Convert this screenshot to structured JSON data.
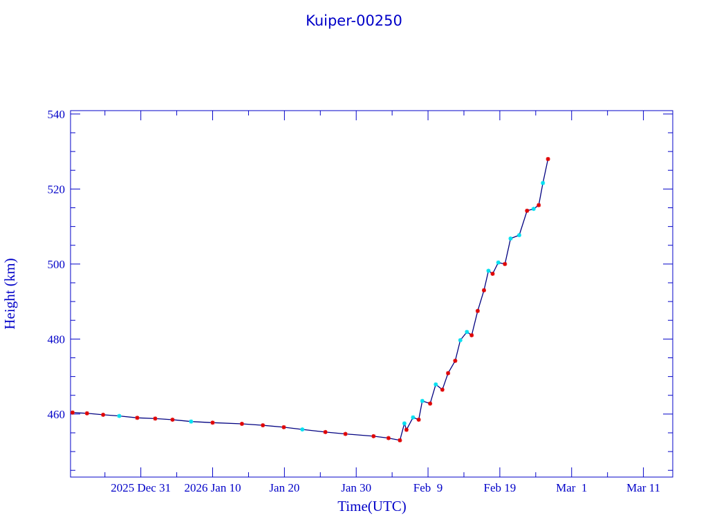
{
  "chart_data": {
    "type": "scatter",
    "title": "Kuiper-00250",
    "xlabel": "Time(UTC)",
    "ylabel": "Height (km)",
    "xlim": [
      "2025-12-21T05:00",
      "2026-03-15T02:00"
    ],
    "ylim": [
      443.2,
      540.9
    ],
    "x_ticks": [
      {
        "date": "2025-12-31",
        "label": "2025 Dec 31"
      },
      {
        "date": "2026-01-10",
        "label": "2026 Jan 10"
      },
      {
        "date": "2026-01-20",
        "label": "Jan 20"
      },
      {
        "date": "2026-01-30",
        "label": "Jan 30"
      },
      {
        "date": "2026-02-09",
        "label": "Feb  9"
      },
      {
        "date": "2026-02-19",
        "label": "Feb 19"
      },
      {
        "date": "2026-03-01",
        "label": "Mar  1"
      },
      {
        "date": "2026-03-11",
        "label": "Mar 11"
      }
    ],
    "y_ticks": [
      460,
      480,
      500,
      520,
      540
    ],
    "grid": false,
    "colors": {
      "axis": "#0000c8",
      "line": "#000080",
      "marker_a": "#e00000",
      "marker_b": "#00e0f0"
    },
    "points": [
      [
        "2025-12-21T12:00",
        460.4,
        "a"
      ],
      [
        "2025-12-23T12:00",
        460.2,
        "a"
      ],
      [
        "2025-12-25T18:00",
        459.8,
        "a"
      ],
      [
        "2025-12-28T00:00",
        459.5,
        "b"
      ],
      [
        "2025-12-30T12:00",
        459.0,
        "a"
      ],
      [
        "2026-01-02T00:00",
        458.8,
        "a"
      ],
      [
        "2026-01-04T10:00",
        458.5,
        "a"
      ],
      [
        "2026-01-07T00:00",
        458.0,
        "b"
      ],
      [
        "2026-01-10T00:00",
        457.7,
        "a"
      ],
      [
        "2026-01-14T02:00",
        457.4,
        "a"
      ],
      [
        "2026-01-17T00:00",
        457.0,
        "a"
      ],
      [
        "2026-01-19T22:00",
        456.5,
        "a"
      ],
      [
        "2026-01-22T12:00",
        455.9,
        "b"
      ],
      [
        "2026-01-25T17:00",
        455.2,
        "a"
      ],
      [
        "2026-01-28T12:00",
        454.7,
        "a"
      ],
      [
        "2026-02-01T10:00",
        454.1,
        "a"
      ],
      [
        "2026-02-03T12:00",
        453.6,
        "a"
      ],
      [
        "2026-02-05T02:00",
        453.0,
        "a"
      ],
      [
        "2026-02-05T17:00",
        457.5,
        "b"
      ],
      [
        "2026-02-06T00:00",
        455.8,
        "a"
      ],
      [
        "2026-02-06T22:00",
        459.1,
        "b"
      ],
      [
        "2026-02-07T17:00",
        458.5,
        "a"
      ],
      [
        "2026-02-08T05:00",
        463.5,
        "b"
      ],
      [
        "2026-02-09T07:00",
        462.8,
        "a"
      ],
      [
        "2026-02-10T02:00",
        467.9,
        "b"
      ],
      [
        "2026-02-11T00:00",
        466.5,
        "a"
      ],
      [
        "2026-02-11T19:00",
        470.9,
        "a"
      ],
      [
        "2026-02-12T19:00",
        474.2,
        "a"
      ],
      [
        "2026-02-13T12:00",
        479.7,
        "b"
      ],
      [
        "2026-02-14T10:00",
        481.9,
        "b"
      ],
      [
        "2026-02-15T02:00",
        481.0,
        "a"
      ],
      [
        "2026-02-15T22:00",
        487.5,
        "a"
      ],
      [
        "2026-02-16T19:00",
        493.0,
        "a"
      ],
      [
        "2026-02-17T10:00",
        498.2,
        "b"
      ],
      [
        "2026-02-18T00:00",
        497.4,
        "a"
      ],
      [
        "2026-02-18T19:00",
        500.4,
        "b"
      ],
      [
        "2026-02-19T17:00",
        500.0,
        "a"
      ],
      [
        "2026-02-20T12:00",
        506.8,
        "b"
      ],
      [
        "2026-02-21T17:00",
        507.7,
        "b"
      ],
      [
        "2026-02-22T19:00",
        514.2,
        "a"
      ],
      [
        "2026-02-23T17:00",
        514.7,
        "b"
      ],
      [
        "2026-02-24T10:00",
        515.7,
        "a"
      ],
      [
        "2026-02-25T00:00",
        521.6,
        "b"
      ],
      [
        "2026-02-25T17:00",
        528.0,
        "a"
      ]
    ]
  }
}
